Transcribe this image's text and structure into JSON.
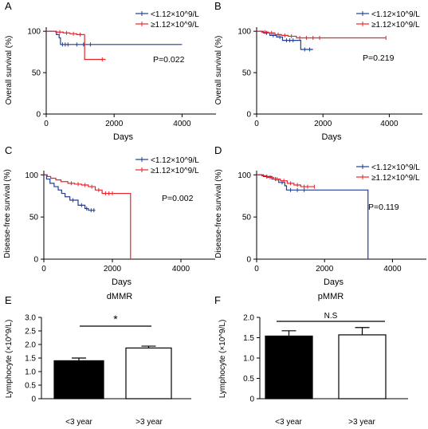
{
  "colors": {
    "blue": "#1f3f97",
    "red": "#e8242b",
    "black": "#000000"
  },
  "km_xticks": [
    "0",
    "2000",
    "4000"
  ],
  "km_yticks": [
    "0",
    "50",
    "100"
  ],
  "chart_data": [
    {
      "panel": "A",
      "type": "line",
      "xlabel": "Days",
      "ylabel": "Overall survival (%)",
      "xlim": [
        0,
        5000
      ],
      "ylim": [
        0,
        105
      ],
      "pvalue": "P=0.022",
      "series": [
        {
          "name": "<1.12×10^9/L",
          "color": "#1f3f97",
          "steps": [
            [
              0,
              100
            ],
            [
              180,
              100
            ],
            [
              300,
              96
            ],
            [
              380,
              92
            ],
            [
              420,
              84
            ],
            [
              4000,
              84
            ]
          ],
          "censors": [
            [
              480,
              84
            ],
            [
              560,
              84
            ],
            [
              640,
              84
            ],
            [
              900,
              84
            ],
            [
              1100,
              84
            ],
            [
              1300,
              84
            ]
          ]
        },
        {
          "name": "≥1.12×10^9/L",
          "color": "#e8242b",
          "steps": [
            [
              0,
              100
            ],
            [
              280,
              99
            ],
            [
              500,
              98
            ],
            [
              700,
              97
            ],
            [
              900,
              96
            ],
            [
              1130,
              96
            ],
            [
              1130,
              66
            ],
            [
              1750,
              66
            ]
          ],
          "censors": [
            [
              400,
              99
            ],
            [
              600,
              98
            ],
            [
              800,
              97
            ],
            [
              1000,
              96
            ],
            [
              1650,
              66
            ]
          ]
        }
      ]
    },
    {
      "panel": "B",
      "type": "line",
      "xlabel": "Days",
      "ylabel": "Overall survival (%)",
      "xlim": [
        0,
        5000
      ],
      "ylim": [
        0,
        105
      ],
      "pvalue": "P=0.219",
      "series": [
        {
          "name": "<1.12×10^9/L",
          "color": "#1f3f97",
          "steps": [
            [
              0,
              100
            ],
            [
              200,
              98
            ],
            [
              400,
              95
            ],
            [
              600,
              93
            ],
            [
              780,
              89
            ],
            [
              1180,
              89
            ],
            [
              1330,
              78
            ],
            [
              1700,
              78
            ]
          ],
          "censors": [
            [
              300,
              98
            ],
            [
              500,
              95
            ],
            [
              700,
              93
            ],
            [
              900,
              89
            ],
            [
              1000,
              89
            ],
            [
              1100,
              89
            ],
            [
              1450,
              78
            ],
            [
              1600,
              78
            ]
          ]
        },
        {
          "name": "≥1.12×10^9/L",
          "color": "#e8242b",
          "steps": [
            [
              0,
              100
            ],
            [
              150,
              99
            ],
            [
              350,
              98
            ],
            [
              550,
              96
            ],
            [
              750,
              95
            ],
            [
              950,
              94
            ],
            [
              1200,
              92
            ],
            [
              3900,
              92
            ]
          ],
          "censors": [
            [
              250,
              99
            ],
            [
              450,
              98
            ],
            [
              650,
              96
            ],
            [
              850,
              95
            ],
            [
              1050,
              94
            ],
            [
              1300,
              92
            ],
            [
              1500,
              92
            ],
            [
              1700,
              92
            ],
            [
              1900,
              92
            ],
            [
              3900,
              92
            ]
          ]
        }
      ]
    },
    {
      "panel": "C",
      "type": "line",
      "xlabel": "Days",
      "ylabel": "Disease-free survival (%)",
      "xlim": [
        0,
        5000
      ],
      "ylim": [
        0,
        105
      ],
      "pvalue": "P=0.002",
      "series": [
        {
          "name": "<1.12×10^9/L",
          "color": "#1f3f97",
          "steps": [
            [
              0,
              100
            ],
            [
              80,
              95
            ],
            [
              180,
              90
            ],
            [
              300,
              86
            ],
            [
              420,
              82
            ],
            [
              520,
              78
            ],
            [
              620,
              74
            ],
            [
              760,
              70
            ],
            [
              900,
              70
            ],
            [
              1000,
              64
            ],
            [
              1200,
              60
            ],
            [
              1300,
              58
            ],
            [
              1500,
              58
            ]
          ],
          "censors": [
            [
              850,
              70
            ],
            [
              1100,
              64
            ],
            [
              1250,
              60
            ],
            [
              1380,
              58
            ],
            [
              1460,
              58
            ]
          ]
        },
        {
          "name": "≥1.12×10^9/L",
          "color": "#e8242b",
          "steps": [
            [
              0,
              100
            ],
            [
              100,
              98
            ],
            [
              200,
              96
            ],
            [
              350,
              94
            ],
            [
              500,
              92
            ],
            [
              700,
              90
            ],
            [
              900,
              89
            ],
            [
              1100,
              88
            ],
            [
              1300,
              86
            ],
            [
              1500,
              82
            ],
            [
              1700,
              78
            ],
            [
              2530,
              78
            ],
            [
              2530,
              0
            ]
          ],
          "censors": [
            [
              800,
              90
            ],
            [
              1000,
              89
            ],
            [
              1200,
              88
            ],
            [
              1400,
              86
            ],
            [
              1600,
              82
            ],
            [
              1800,
              78
            ],
            [
              1900,
              78
            ],
            [
              2000,
              78
            ]
          ]
        }
      ]
    },
    {
      "panel": "D",
      "type": "line",
      "xlabel": "Days",
      "ylabel": "Disease-free survival (%)",
      "xlim": [
        0,
        5000
      ],
      "ylim": [
        0,
        105
      ],
      "pvalue": "P=0.119",
      "series": [
        {
          "name": "<1.12×10^9/L",
          "color": "#1f3f97",
          "steps": [
            [
              0,
              100
            ],
            [
              200,
              98
            ],
            [
              450,
              95
            ],
            [
              650,
              91
            ],
            [
              830,
              87
            ],
            [
              880,
              82
            ],
            [
              3280,
              82
            ],
            [
              3280,
              0
            ]
          ],
          "censors": [
            [
              300,
              98
            ],
            [
              550,
              95
            ],
            [
              750,
              91
            ],
            [
              1000,
              82
            ],
            [
              1200,
              82
            ],
            [
              1400,
              82
            ]
          ]
        },
        {
          "name": "≥1.12×10^9/L",
          "color": "#e8242b",
          "steps": [
            [
              0,
              100
            ],
            [
              150,
              99
            ],
            [
              300,
              97
            ],
            [
              500,
              95
            ],
            [
              700,
              93
            ],
            [
              900,
              90
            ],
            [
              1100,
              88
            ],
            [
              1300,
              86
            ],
            [
              1700,
              86
            ]
          ],
          "censors": [
            [
              400,
              97
            ],
            [
              600,
              95
            ],
            [
              800,
              93
            ],
            [
              1000,
              90
            ],
            [
              1200,
              88
            ],
            [
              1400,
              86
            ],
            [
              1500,
              86
            ],
            [
              1700,
              86
            ]
          ]
        }
      ]
    },
    {
      "panel": "E",
      "type": "bar",
      "title": "dMMR",
      "ylabel": "Lymphocyte (×10^9/L)",
      "categories": [
        "<3 year",
        ">3 year"
      ],
      "values": [
        1.4,
        1.87
      ],
      "errors": [
        0.1,
        0.07
      ],
      "ylim": [
        0,
        3.0
      ],
      "yticks": [
        "0",
        "0.5",
        "1.0",
        "1.5",
        "2.0",
        "2.5",
        "3.0"
      ],
      "yticks_values": [
        0,
        0.5,
        1.0,
        1.5,
        2.0,
        2.5,
        3.0
      ],
      "fills": [
        "#000000",
        "#ffffff"
      ],
      "significance": "*"
    },
    {
      "panel": "F",
      "type": "bar",
      "title": "pMMR",
      "ylabel": "Lymphocyte (×10^9/L)",
      "categories": [
        "<3 year",
        ">3 year"
      ],
      "values": [
        1.54,
        1.57
      ],
      "errors": [
        0.13,
        0.18
      ],
      "ylim": [
        0,
        2.0
      ],
      "yticks": [
        "0",
        "0.5",
        "1.0",
        "1.5",
        "2.0"
      ],
      "yticks_values": [
        0,
        0.5,
        1.0,
        1.5,
        2.0
      ],
      "fills": [
        "#000000",
        "#ffffff"
      ],
      "significance": "N.S"
    }
  ]
}
